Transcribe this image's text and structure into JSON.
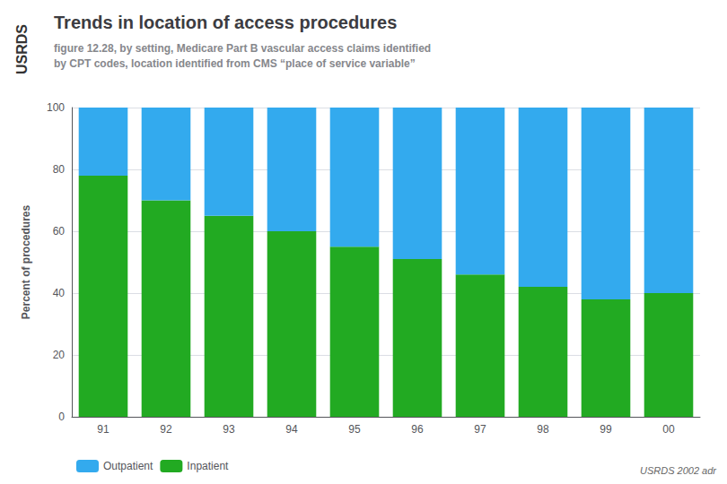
{
  "chart_data": {
    "type": "bar",
    "stacked": true,
    "title": "Trends in location of access procedures",
    "subtitle": "figure 12.28, by setting, Medicare Part B vascular access claims identified\nby CPT codes, location identified from CMS “place of service variable”",
    "ylabel": "Percent of procedures",
    "annotations": [
      "USRDS",
      "USRDS 2002 adr"
    ],
    "categories": [
      "91",
      "92",
      "93",
      "94",
      "95",
      "96",
      "97",
      "98",
      "99",
      "00"
    ],
    "series": [
      {
        "name": "Inpatient",
        "color": "#22aa22",
        "values": [
          78,
          70,
          65,
          60,
          55,
          51,
          46,
          42,
          38,
          40
        ]
      },
      {
        "name": "Outpatient",
        "color": "#33aaee",
        "values": [
          22,
          30,
          35,
          40,
          45,
          49,
          54,
          58,
          62,
          60
        ]
      }
    ],
    "ylim": [
      0,
      100
    ],
    "yticks": [
      0,
      20,
      40,
      60,
      80,
      100
    ],
    "grid": true,
    "legend": "lower left"
  }
}
